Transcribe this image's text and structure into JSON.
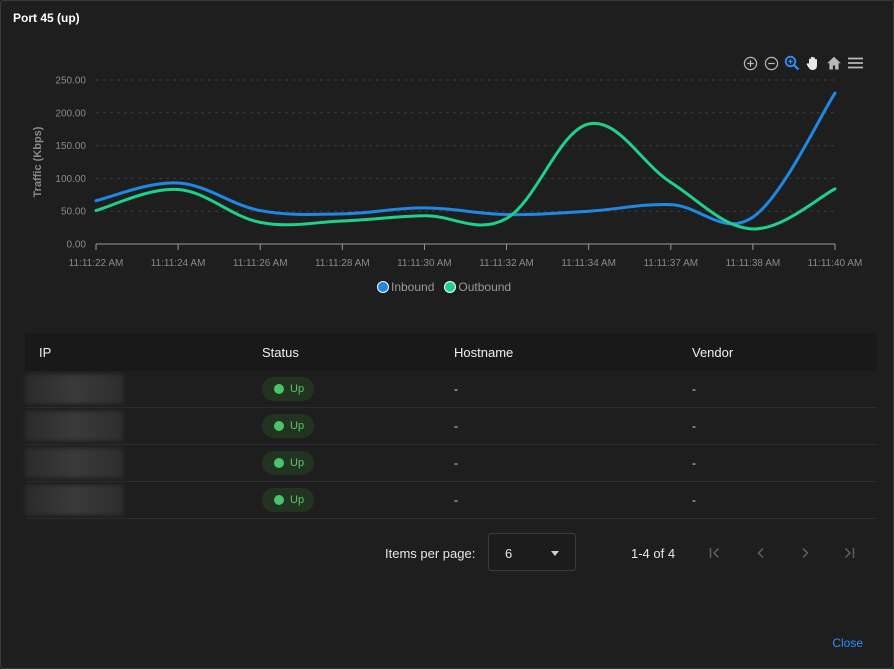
{
  "dialog": {
    "title": "Port 45 (up)",
    "close_label": "Close"
  },
  "toolbar": {
    "icons": [
      "zoom-in-icon",
      "zoom-out-icon",
      "selection-zoom-icon",
      "pan-hand-icon",
      "home-reset-icon",
      "menu-icon"
    ]
  },
  "chart_data": {
    "type": "line",
    "ylabel": "Traffic (Kbps)",
    "xlabel": "",
    "ylim": [
      0,
      250
    ],
    "yticks": [
      "0.00",
      "50.00",
      "100.00",
      "150.00",
      "200.00",
      "250.00"
    ],
    "categories": [
      "11:11:22 AM",
      "11:11:24 AM",
      "11:11:26 AM",
      "11:11:28 AM",
      "11:11:30 AM",
      "11:11:32 AM",
      "11:11:34 AM",
      "11:11:37 AM",
      "11:11:38 AM",
      "11:11:40 AM"
    ],
    "grid": true,
    "legend_position": "bottom-center",
    "series": [
      {
        "name": "Inbound",
        "color": "#1e88e5",
        "values": [
          66,
          93,
          51,
          46,
          55,
          45,
          50,
          60,
          41,
          230
        ]
      },
      {
        "name": "Outbound",
        "color": "#1ed18a",
        "values": [
          51,
          83,
          33,
          35,
          43,
          39,
          183,
          94,
          23,
          84
        ]
      }
    ]
  },
  "table": {
    "headers": {
      "ip": "IP",
      "status": "Status",
      "hostname": "Hostname",
      "vendor": "Vendor"
    },
    "rows": [
      {
        "status": "Up",
        "hostname": "-",
        "vendor": "-"
      },
      {
        "status": "Up",
        "hostname": "-",
        "vendor": "-"
      },
      {
        "status": "Up",
        "hostname": "-",
        "vendor": "-"
      },
      {
        "status": "Up",
        "hostname": "-",
        "vendor": "-"
      }
    ]
  },
  "pagination": {
    "items_per_page_label": "Items per page:",
    "items_per_page_value": "6",
    "range_label": "1-4 of 4"
  },
  "colors": {
    "accent": "#2f8fff",
    "status_up": "#49c46a"
  }
}
